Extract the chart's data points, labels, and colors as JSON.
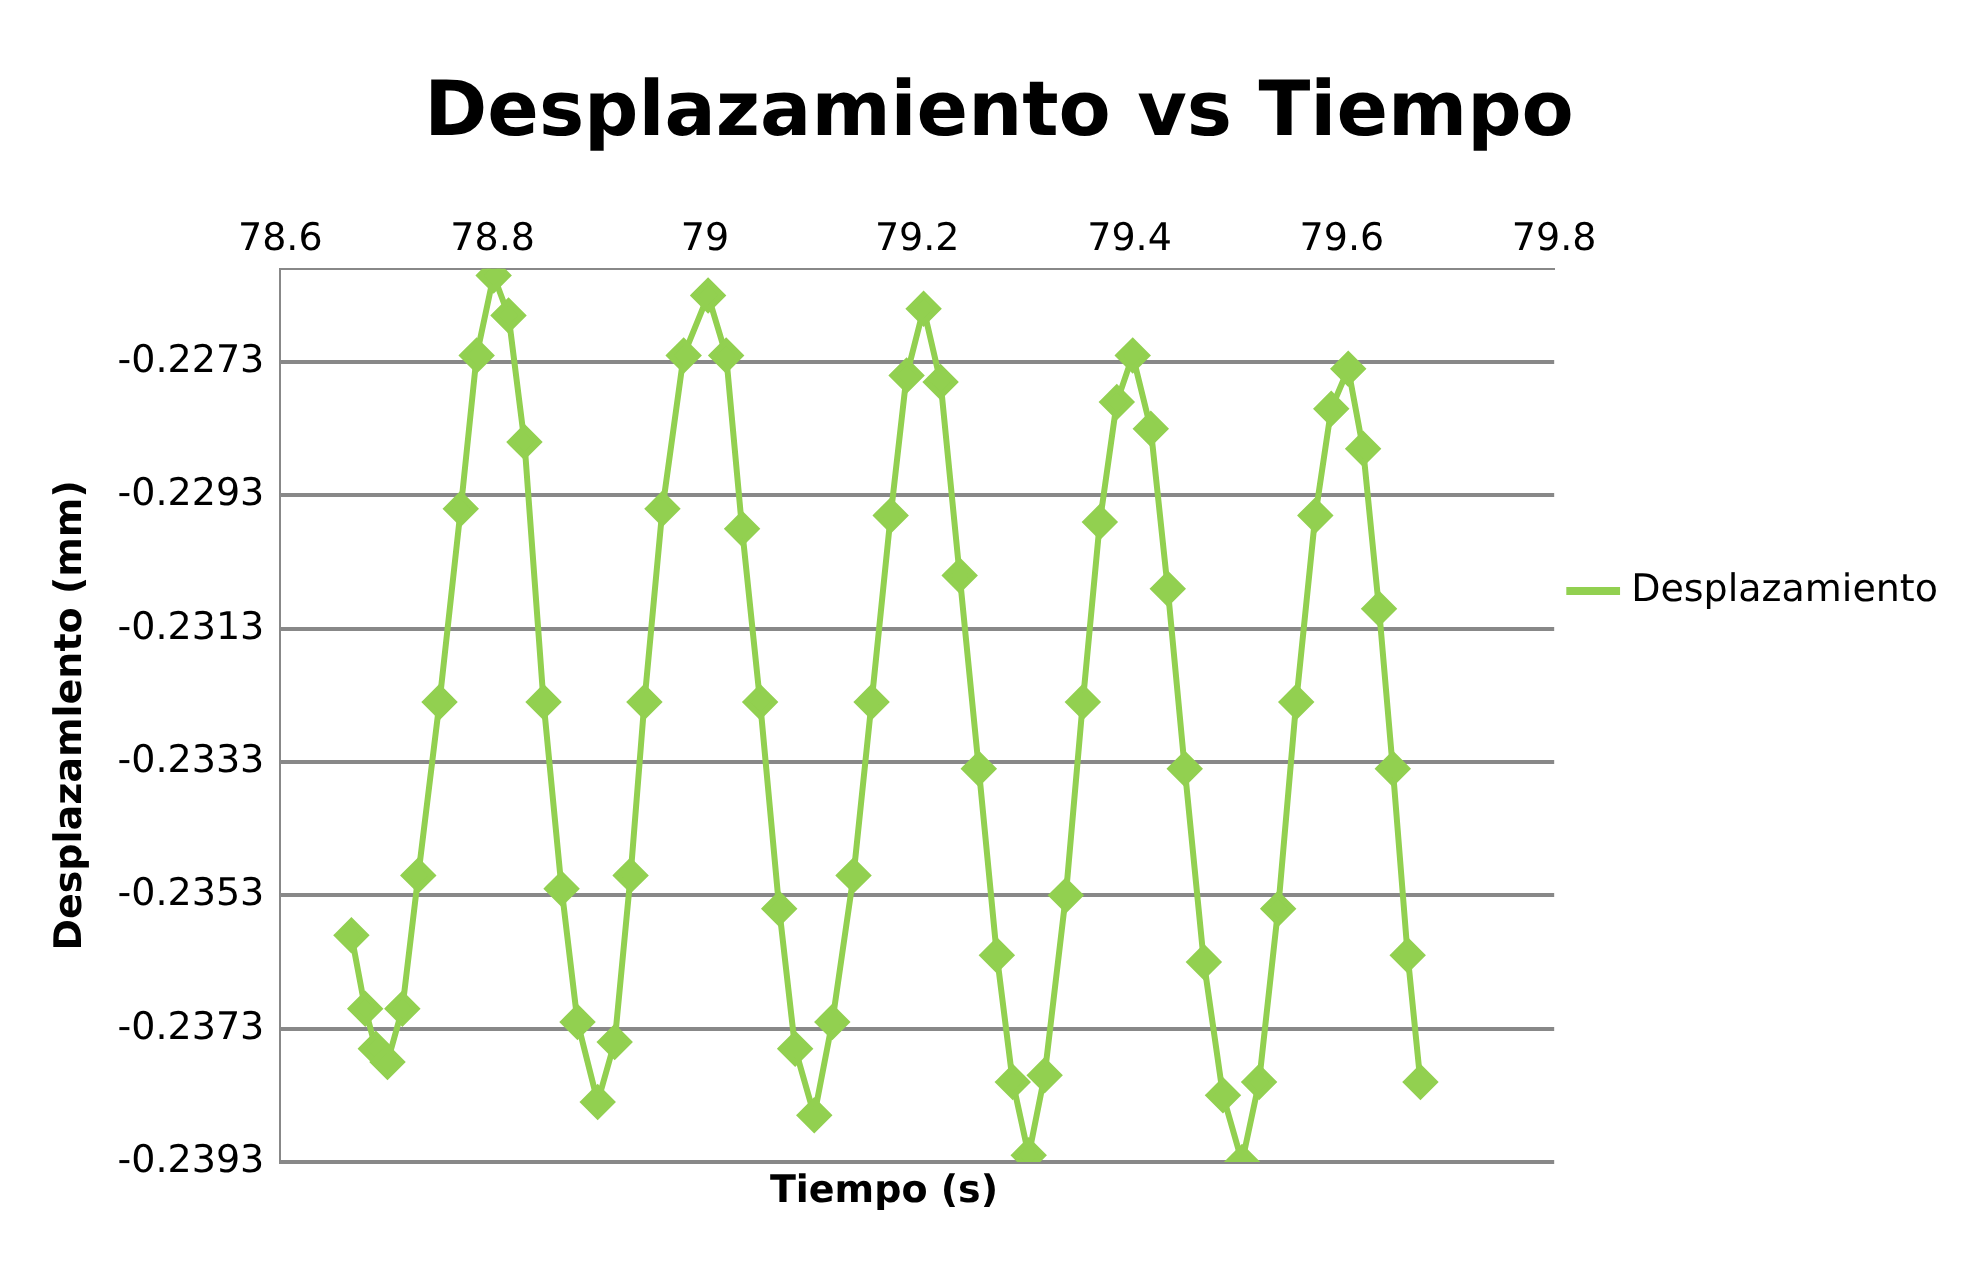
{
  "chart_data": {
    "type": "line",
    "title": "Desplazamiento vs Tiempo",
    "xlabel": "Tiempo (s)",
    "ylabel": "Desplazamlento (mm)",
    "xlim": [
      78.6,
      79.8
    ],
    "xticks": [
      78.6,
      78.8,
      79,
      79.2,
      79.4,
      79.6,
      79.8
    ],
    "ylim": [
      -0.2393,
      -0.2259
    ],
    "yticks": [
      -0.2393,
      -0.2373,
      -0.2353,
      -0.2333,
      -0.2313,
      -0.2293,
      -0.2273
    ],
    "grid": "y",
    "legend": "right",
    "marker": "diamond",
    "line_style": "solid",
    "series": [
      {
        "name": "Desplazamiento",
        "color": "#92d050",
        "x": [
          78.667,
          78.68,
          78.69,
          78.701,
          78.715,
          78.73,
          78.75,
          78.77,
          78.785,
          78.801,
          78.815,
          78.83,
          78.848,
          78.865,
          78.88,
          78.899,
          78.915,
          78.93,
          78.943,
          78.96,
          78.98,
          79.003,
          79.02,
          79.035,
          79.052,
          79.07,
          79.085,
          79.103,
          79.12,
          79.14,
          79.157,
          79.175,
          79.19,
          79.206,
          79.222,
          79.24,
          79.258,
          79.275,
          79.29,
          79.305,
          79.32,
          79.34,
          79.356,
          79.372,
          79.388,
          79.403,
          79.42,
          79.436,
          79.452,
          79.47,
          79.488,
          79.506,
          79.522,
          79.54,
          79.557,
          79.575,
          79.59,
          79.606,
          79.62,
          79.635,
          79.648,
          79.662,
          79.674
        ],
        "values": [
          -0.2359,
          -0.237,
          -0.2376,
          -0.2378,
          -0.237,
          -0.235,
          -0.2324,
          -0.2295,
          -0.2272,
          -0.226,
          -0.2266,
          -0.2285,
          -0.2324,
          -0.2352,
          -0.2372,
          -0.2384,
          -0.2375,
          -0.235,
          -0.2324,
          -0.2295,
          -0.2272,
          -0.2263,
          -0.2272,
          -0.2298,
          -0.2324,
          -0.2355,
          -0.2376,
          -0.2386,
          -0.2372,
          -0.235,
          -0.2324,
          -0.2296,
          -0.2275,
          -0.2265,
          -0.2276,
          -0.2305,
          -0.2334,
          -0.2362,
          -0.2381,
          -0.2392,
          -0.238,
          -0.2353,
          -0.2324,
          -0.2297,
          -0.2279,
          -0.2272,
          -0.2283,
          -0.2307,
          -0.2334,
          -0.2363,
          -0.2383,
          -0.2393,
          -0.2381,
          -0.2355,
          -0.2324,
          -0.2296,
          -0.228,
          -0.2274,
          -0.2286,
          -0.231,
          -0.2334,
          -0.2362,
          -0.2381
        ]
      }
    ]
  }
}
